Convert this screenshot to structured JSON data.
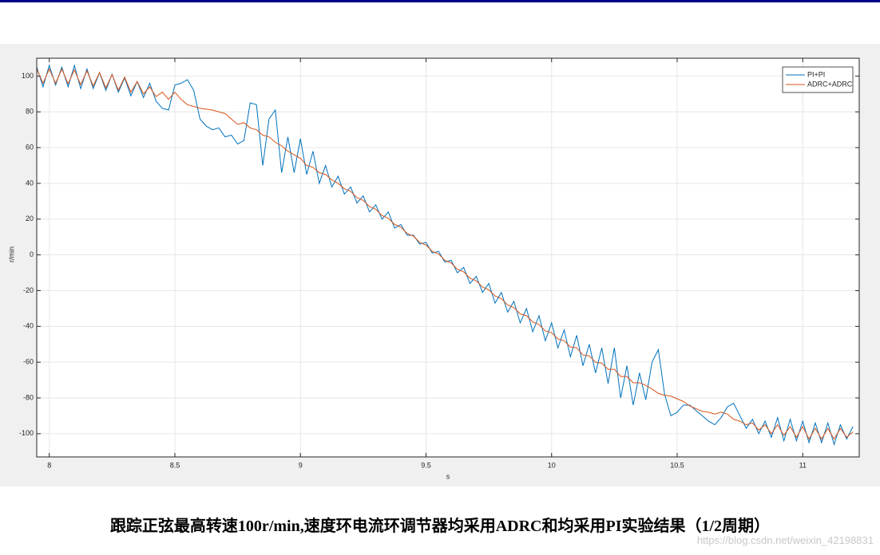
{
  "chart_data": {
    "type": "line",
    "x_label": "s",
    "y_label": "r/min",
    "xlim": [
      7.95,
      11.225
    ],
    "ylim": [
      -113,
      110
    ],
    "xticks": [
      8,
      8.5,
      9,
      9.5,
      10,
      10.5,
      11
    ],
    "yticks": [
      -100,
      -80,
      -60,
      -40,
      -20,
      0,
      20,
      40,
      60,
      80,
      100
    ],
    "grid": true,
    "legend": "northeast",
    "x": [
      7.95,
      7.975,
      8,
      8.025,
      8.05,
      8.075,
      8.1,
      8.125,
      8.15,
      8.175,
      8.2,
      8.225,
      8.25,
      8.275,
      8.3,
      8.325,
      8.35,
      8.375,
      8.4,
      8.425,
      8.45,
      8.475,
      8.5,
      8.525,
      8.55,
      8.575,
      8.6,
      8.625,
      8.65,
      8.675,
      8.7,
      8.725,
      8.75,
      8.775,
      8.8,
      8.825,
      8.85,
      8.875,
      8.9,
      8.925,
      8.95,
      8.975,
      9,
      9.025,
      9.05,
      9.075,
      9.1,
      9.125,
      9.15,
      9.175,
      9.2,
      9.225,
      9.25,
      9.275,
      9.3,
      9.325,
      9.35,
      9.375,
      9.4,
      9.425,
      9.45,
      9.475,
      9.5,
      9.525,
      9.55,
      9.575,
      9.6,
      9.625,
      9.65,
      9.675,
      9.7,
      9.725,
      9.75,
      9.775,
      9.8,
      9.825,
      9.85,
      9.875,
      9.9,
      9.925,
      9.95,
      9.975,
      10,
      10.025,
      10.05,
      10.075,
      10.1,
      10.125,
      10.15,
      10.175,
      10.2,
      10.225,
      10.25,
      10.275,
      10.3,
      10.325,
      10.35,
      10.375,
      10.4,
      10.425,
      10.45,
      10.475,
      10.5,
      10.525,
      10.55,
      10.575,
      10.6,
      10.625,
      10.65,
      10.675,
      10.7,
      10.725,
      10.75,
      10.775,
      10.8,
      10.825,
      10.85,
      10.875,
      10.9,
      10.925,
      10.95,
      10.975,
      11,
      11.025,
      11.05,
      11.075,
      11.1,
      11.125,
      11.15,
      11.175,
      11.2
    ],
    "series": [
      {
        "name": "PI+PI",
        "color": "#0072bd",
        "values": [
          105,
          94,
          106,
          95,
          105,
          94,
          106,
          93,
          104,
          93,
          102,
          92,
          101,
          91,
          99,
          89,
          97,
          88,
          96,
          86,
          82,
          81,
          95,
          96,
          98,
          92,
          76,
          72,
          70,
          71,
          66,
          67,
          62,
          64,
          85,
          84,
          50,
          76,
          81,
          46,
          66,
          46,
          65,
          45,
          58,
          40,
          50,
          38,
          44,
          34,
          38,
          29,
          33,
          24,
          28,
          20,
          24,
          15,
          17,
          11,
          11,
          6,
          7,
          1,
          2,
          -4,
          -3,
          -10,
          -7,
          -16,
          -12,
          -21,
          -16,
          -27,
          -21,
          -32,
          -26,
          -38,
          -30,
          -43,
          -34,
          -48,
          -38,
          -52,
          -42,
          -57,
          -45,
          -62,
          -50,
          -66,
          -52,
          -72,
          -52,
          -80,
          -62,
          -84,
          -66,
          -81,
          -60,
          -53,
          -78,
          -90,
          -88,
          -84,
          -84,
          -87,
          -90,
          -93,
          -95,
          -91,
          -85,
          -83,
          -90,
          -97,
          -92,
          -100,
          -93,
          -102,
          -91,
          -104,
          -92,
          -104,
          -93,
          -105,
          -94,
          -105,
          -94,
          -106,
          -95,
          -103,
          -96
        ]
      },
      {
        "name": "ADRC+ADRC",
        "color": "#d95319",
        "values": [
          103.9,
          96,
          104,
          96,
          103.9,
          95.7,
          103.5,
          95.2,
          102.9,
          94.5,
          102,
          93.4,
          100.8,
          92.1,
          99.4,
          91,
          97,
          90,
          94,
          88.5,
          91,
          87,
          91,
          87,
          84,
          83,
          82,
          81.5,
          81,
          80,
          79,
          76,
          73,
          74,
          71,
          70,
          67,
          66,
          63,
          61,
          58,
          56,
          54,
          50,
          49,
          46,
          45,
          42,
          40,
          37,
          35.5,
          32,
          30.5,
          27,
          25.5,
          22,
          20.5,
          17,
          15.5,
          12,
          10.5,
          7,
          5.5,
          2,
          0.5,
          -3,
          -4.5,
          -8,
          -9.5,
          -13,
          -14.5,
          -18,
          -19.5,
          -23,
          -24.5,
          -28,
          -29.5,
          -33,
          -34,
          -37.5,
          -39,
          -42.5,
          -43.5,
          -47,
          -48,
          -51.5,
          -52,
          -56,
          -56.5,
          -60,
          -60.5,
          -64,
          -64,
          -68,
          -68,
          -71.5,
          -71.5,
          -73,
          -75,
          -77.5,
          -78.5,
          -79,
          -80.5,
          -82,
          -84.5,
          -86,
          -87.5,
          -88,
          -89,
          -88,
          -89,
          -92,
          -93,
          -95,
          -94,
          -98,
          -95,
          -100,
          -95,
          -101,
          -96,
          -102,
          -96,
          -103,
          -97,
          -103,
          -97,
          -103,
          -97,
          -102,
          -99
        ]
      }
    ]
  },
  "caption": "跟踪正弦最高转速100r/min,速度环电流环调节器均采用ADRC和均采用PI实验结果（1/2周期）",
  "watermark": "https://blog.csdn.net/weixin_42198831"
}
